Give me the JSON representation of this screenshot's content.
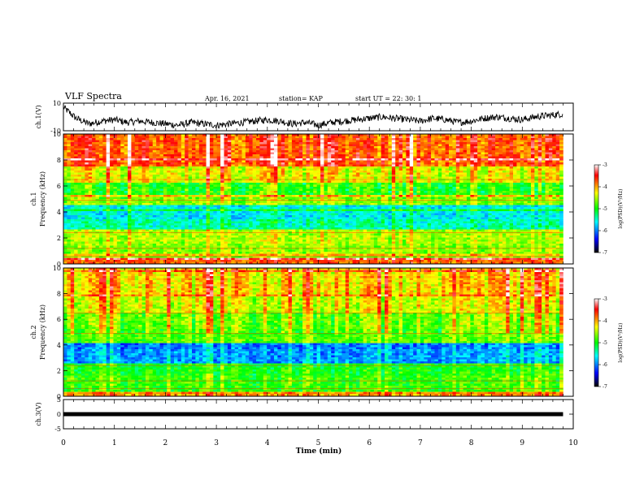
{
  "header": {
    "title": "VLF Spectra",
    "date": "Apr. 16, 2021",
    "station": "station= KAP",
    "start": "start  UT =   22: 30: 1"
  },
  "colors": {
    "trace": "#000000",
    "colormap": [
      "#ffffff",
      "#ff0000",
      "#ffff00",
      "#00ff00",
      "#00ffff",
      "#0000ff",
      "#000000"
    ]
  },
  "chart_data": [
    {
      "type": "line",
      "ylabel": "ch.1(V)",
      "ylim": [
        -10,
        10
      ],
      "yticks": [
        "10",
        "-10"
      ],
      "x": [
        0,
        0.25,
        0.5,
        0.75,
        1,
        1.25,
        1.5,
        1.75,
        2,
        2.25,
        2.5,
        2.75,
        3,
        3.25,
        3.5,
        3.75,
        4,
        4.25,
        4.5,
        4.75,
        5,
        5.25,
        5.5,
        5.75,
        6,
        6.25,
        6.5,
        6.75,
        7,
        7.25,
        7.5,
        7.75,
        8,
        8.25,
        8.5,
        8.75,
        9,
        9.25,
        9.5,
        9.75
      ],
      "values": [
        7,
        -1,
        -5,
        -3,
        -2,
        -4,
        -3,
        -4,
        -5,
        -6,
        -4,
        -5,
        -6,
        -5,
        -4,
        -3,
        -2,
        -3,
        -5,
        -4,
        -6,
        -4,
        -3,
        -2,
        -1,
        0,
        -1,
        -2,
        -3,
        -1,
        -2,
        -4,
        -3,
        -1,
        0,
        -1,
        -2,
        0,
        1,
        2
      ]
    },
    {
      "type": "heatmap",
      "ylabel": "ch.1\nFrequency (kHz)",
      "ylim": [
        0,
        10
      ],
      "yticks": [
        "0",
        "2",
        "4",
        "6",
        "8",
        "10"
      ],
      "bands": [
        {
          "f": [
            0,
            0.5
          ],
          "level": -3.8
        },
        {
          "f": [
            0.5,
            1.5
          ],
          "level": -4.6
        },
        {
          "f": [
            1.5,
            2.6
          ],
          "level": -4.5
        },
        {
          "f": [
            2.6,
            3.4
          ],
          "level": -5.4
        },
        {
          "f": [
            3.4,
            4.6
          ],
          "level": -5.6
        },
        {
          "f": [
            4.6,
            5.3
          ],
          "level": -4.6
        },
        {
          "f": [
            5.3,
            6.2
          ],
          "level": -4.9
        },
        {
          "f": [
            6.2,
            7.5
          ],
          "level": -4.3
        },
        {
          "f": [
            7.5,
            10
          ],
          "level": -3.7
        }
      ],
      "colorbar": {
        "label": "log(PSD)(V²/Hz)",
        "ticks": [
          "-3",
          "-4",
          "-5",
          "-6",
          "-7"
        ],
        "range": [
          -7,
          -3
        ]
      }
    },
    {
      "type": "heatmap",
      "ylabel": "ch.2\nFrequency (kHz)",
      "ylim": [
        0,
        10
      ],
      "yticks": [
        "0",
        "2",
        "4",
        "6",
        "8",
        "10"
      ],
      "bands": [
        {
          "f": [
            0,
            0.4
          ],
          "level": -4.0
        },
        {
          "f": [
            0.4,
            1.6
          ],
          "level": -4.9
        },
        {
          "f": [
            1.6,
            2.6
          ],
          "level": -5.0
        },
        {
          "f": [
            2.6,
            3.6
          ],
          "level": -5.9
        },
        {
          "f": [
            3.6,
            4.2
          ],
          "level": -6.0
        },
        {
          "f": [
            4.2,
            5.2
          ],
          "level": -4.8
        },
        {
          "f": [
            5.2,
            6.5
          ],
          "level": -4.7
        },
        {
          "f": [
            6.5,
            8.0
          ],
          "level": -4.4
        },
        {
          "f": [
            8.0,
            10
          ],
          "level": -4.2
        }
      ],
      "colorbar": {
        "label": "log(PSD)(V²/Hz)",
        "ticks": [
          "-3",
          "-4",
          "-5",
          "-6",
          "-7"
        ],
        "range": [
          -7,
          -3
        ]
      }
    },
    {
      "type": "line",
      "ylabel": "ch.3(V)",
      "ylim": [
        -5,
        5
      ],
      "yticks": [
        "5",
        "0",
        "-5"
      ],
      "x": [
        0,
        9.8
      ],
      "values": [
        0,
        0
      ]
    }
  ],
  "xaxis": {
    "label": "Time (min)",
    "range": [
      0,
      10
    ],
    "ticks": [
      "0",
      "1",
      "2",
      "3",
      "4",
      "5",
      "6",
      "7",
      "8",
      "9",
      "10"
    ],
    "data_end": 9.8
  }
}
